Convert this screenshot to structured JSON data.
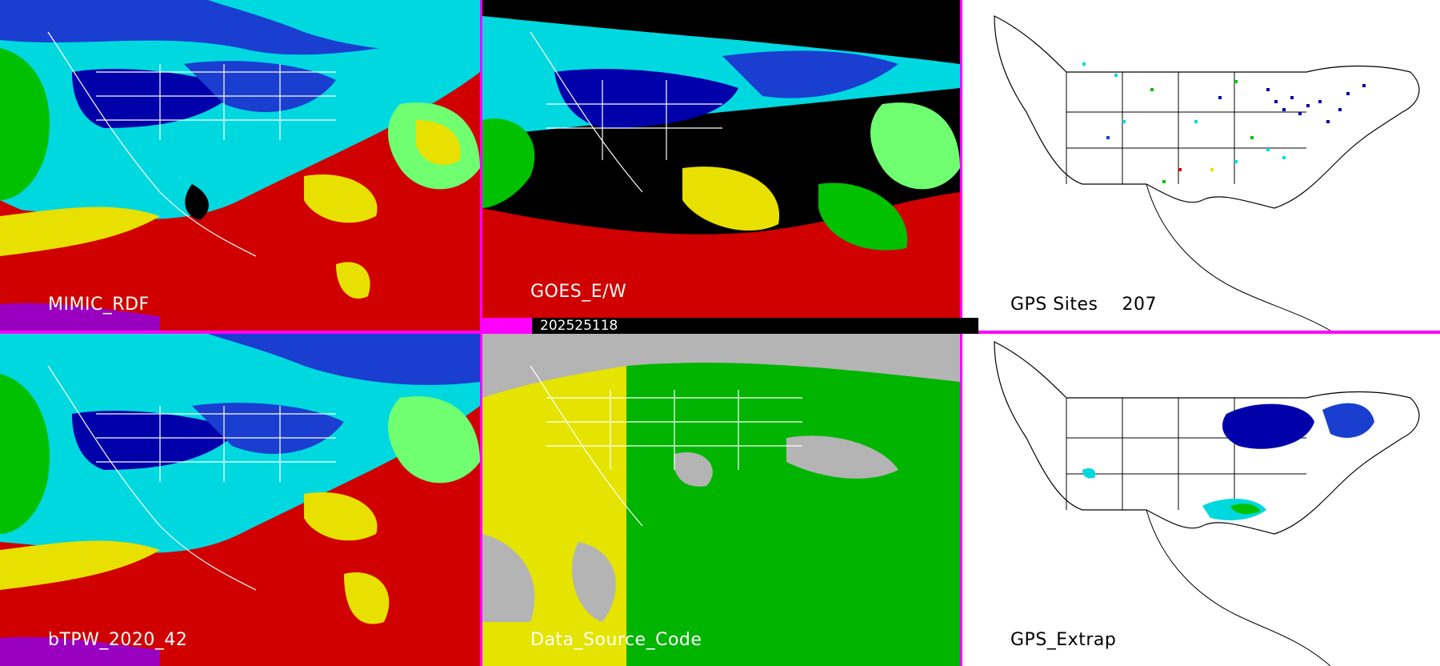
{
  "timestamp": "202525118",
  "panels": [
    {
      "id": "mimic",
      "label": "MIMIC_RDF"
    },
    {
      "id": "goes",
      "label": "GOES_E/W"
    },
    {
      "id": "gps-sites",
      "label": "GPS Sites",
      "count": "207"
    },
    {
      "id": "btpw",
      "label": "bTPW_2020_42"
    },
    {
      "id": "source",
      "label": "Data_Source_Code"
    },
    {
      "id": "gps-extrap",
      "label": "GPS_Extrap"
    }
  ],
  "colors": {
    "divider": "#ff00ff",
    "tpw_scale": [
      "#000000",
      "#0000aa",
      "#1a3fd0",
      "#00d8e0",
      "#00c000",
      "#70ff70",
      "#e8e000",
      "#d00000",
      "#9a00c0"
    ],
    "source_codes": {
      "satellite_goes": "#00b400",
      "satellite_other": "#e4e400",
      "missing": "#b4b4b4"
    }
  }
}
